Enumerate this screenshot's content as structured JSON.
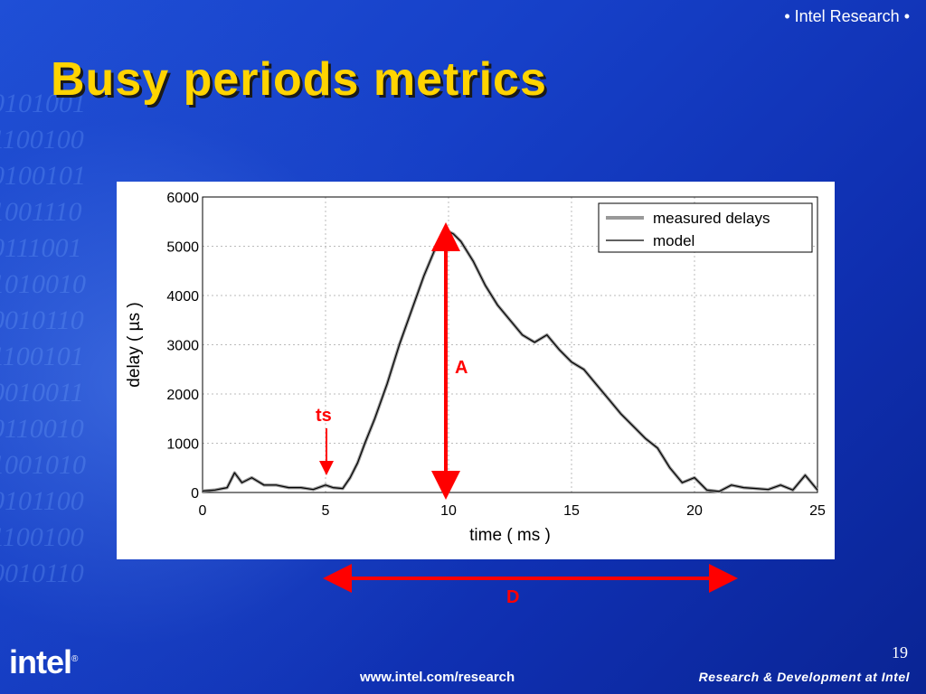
{
  "slide": {
    "header_tag": "• Intel Research •",
    "title": "Busy periods metrics",
    "page_number": "19",
    "url": "www.intel.com/research",
    "logo_text": "intel",
    "tagline": "Research & Development at Intel",
    "colors": {
      "title": "#ffd400",
      "annotation": "#ff0000",
      "background": "#1a45cc"
    }
  },
  "annotations": {
    "a_label": "A",
    "ts_label": "ts",
    "d_label": "D"
  },
  "chart_data": {
    "type": "line",
    "xlabel": "time ( ms )",
    "ylabel": "delay ( µs )",
    "xlim": [
      0,
      25
    ],
    "ylim": [
      0,
      6000
    ],
    "xticks": [
      0,
      5,
      10,
      15,
      20,
      25
    ],
    "yticks": [
      0,
      1000,
      2000,
      3000,
      4000,
      5000,
      6000
    ],
    "grid": true,
    "legend_position": "top-right",
    "series": [
      {
        "name": "measured delays",
        "color": "#999999",
        "x": [
          0,
          0.5,
          1,
          1.3,
          1.6,
          2,
          2.5,
          3,
          3.5,
          4,
          4.5,
          5,
          5.3,
          5.7,
          6,
          6.3,
          6.6,
          7,
          7.5,
          8,
          8.5,
          9,
          9.5,
          9.8,
          10,
          10.2,
          10.5,
          11,
          11.5,
          12,
          12.5,
          13,
          13.5,
          14,
          14.5,
          15,
          15.5,
          16,
          16.5,
          17,
          17.5,
          18,
          18.5,
          19,
          19.5,
          20,
          20.5,
          21,
          21.5,
          22,
          22.5,
          23,
          23.5,
          24,
          24.5,
          25
        ],
        "y": [
          30,
          50,
          100,
          400,
          200,
          300,
          150,
          150,
          100,
          100,
          60,
          150,
          100,
          80,
          300,
          600,
          1000,
          1500,
          2200,
          3000,
          3700,
          4400,
          5000,
          5250,
          5300,
          5250,
          5100,
          4700,
          4200,
          3800,
          3500,
          3200,
          3050,
          3200,
          2900,
          2650,
          2500,
          2200,
          1900,
          1600,
          1350,
          1100,
          900,
          500,
          200,
          300,
          50,
          20,
          150,
          100,
          80,
          60,
          150,
          50,
          350,
          50
        ]
      },
      {
        "name": "model",
        "color": "#000000",
        "x": [
          0,
          0.5,
          1,
          1.3,
          1.6,
          2,
          2.5,
          3,
          3.5,
          4,
          4.5,
          5,
          5.3,
          5.7,
          6,
          6.3,
          6.6,
          7,
          7.5,
          8,
          8.5,
          9,
          9.5,
          9.8,
          10,
          10.2,
          10.5,
          11,
          11.5,
          12,
          12.5,
          13,
          13.5,
          14,
          14.5,
          15,
          15.5,
          16,
          16.5,
          17,
          17.5,
          18,
          18.5,
          19,
          19.5,
          20,
          20.5,
          21,
          21.5,
          22,
          22.5,
          23,
          23.5,
          24,
          24.5,
          25
        ],
        "y": [
          30,
          50,
          100,
          400,
          200,
          300,
          150,
          150,
          100,
          100,
          60,
          150,
          100,
          80,
          300,
          600,
          1000,
          1500,
          2200,
          3000,
          3700,
          4400,
          5000,
          5250,
          5300,
          5250,
          5100,
          4700,
          4200,
          3800,
          3500,
          3200,
          3050,
          3200,
          2900,
          2650,
          2500,
          2200,
          1900,
          1600,
          1350,
          1100,
          900,
          500,
          200,
          300,
          50,
          20,
          150,
          100,
          80,
          60,
          150,
          50,
          350,
          50
        ]
      }
    ]
  }
}
